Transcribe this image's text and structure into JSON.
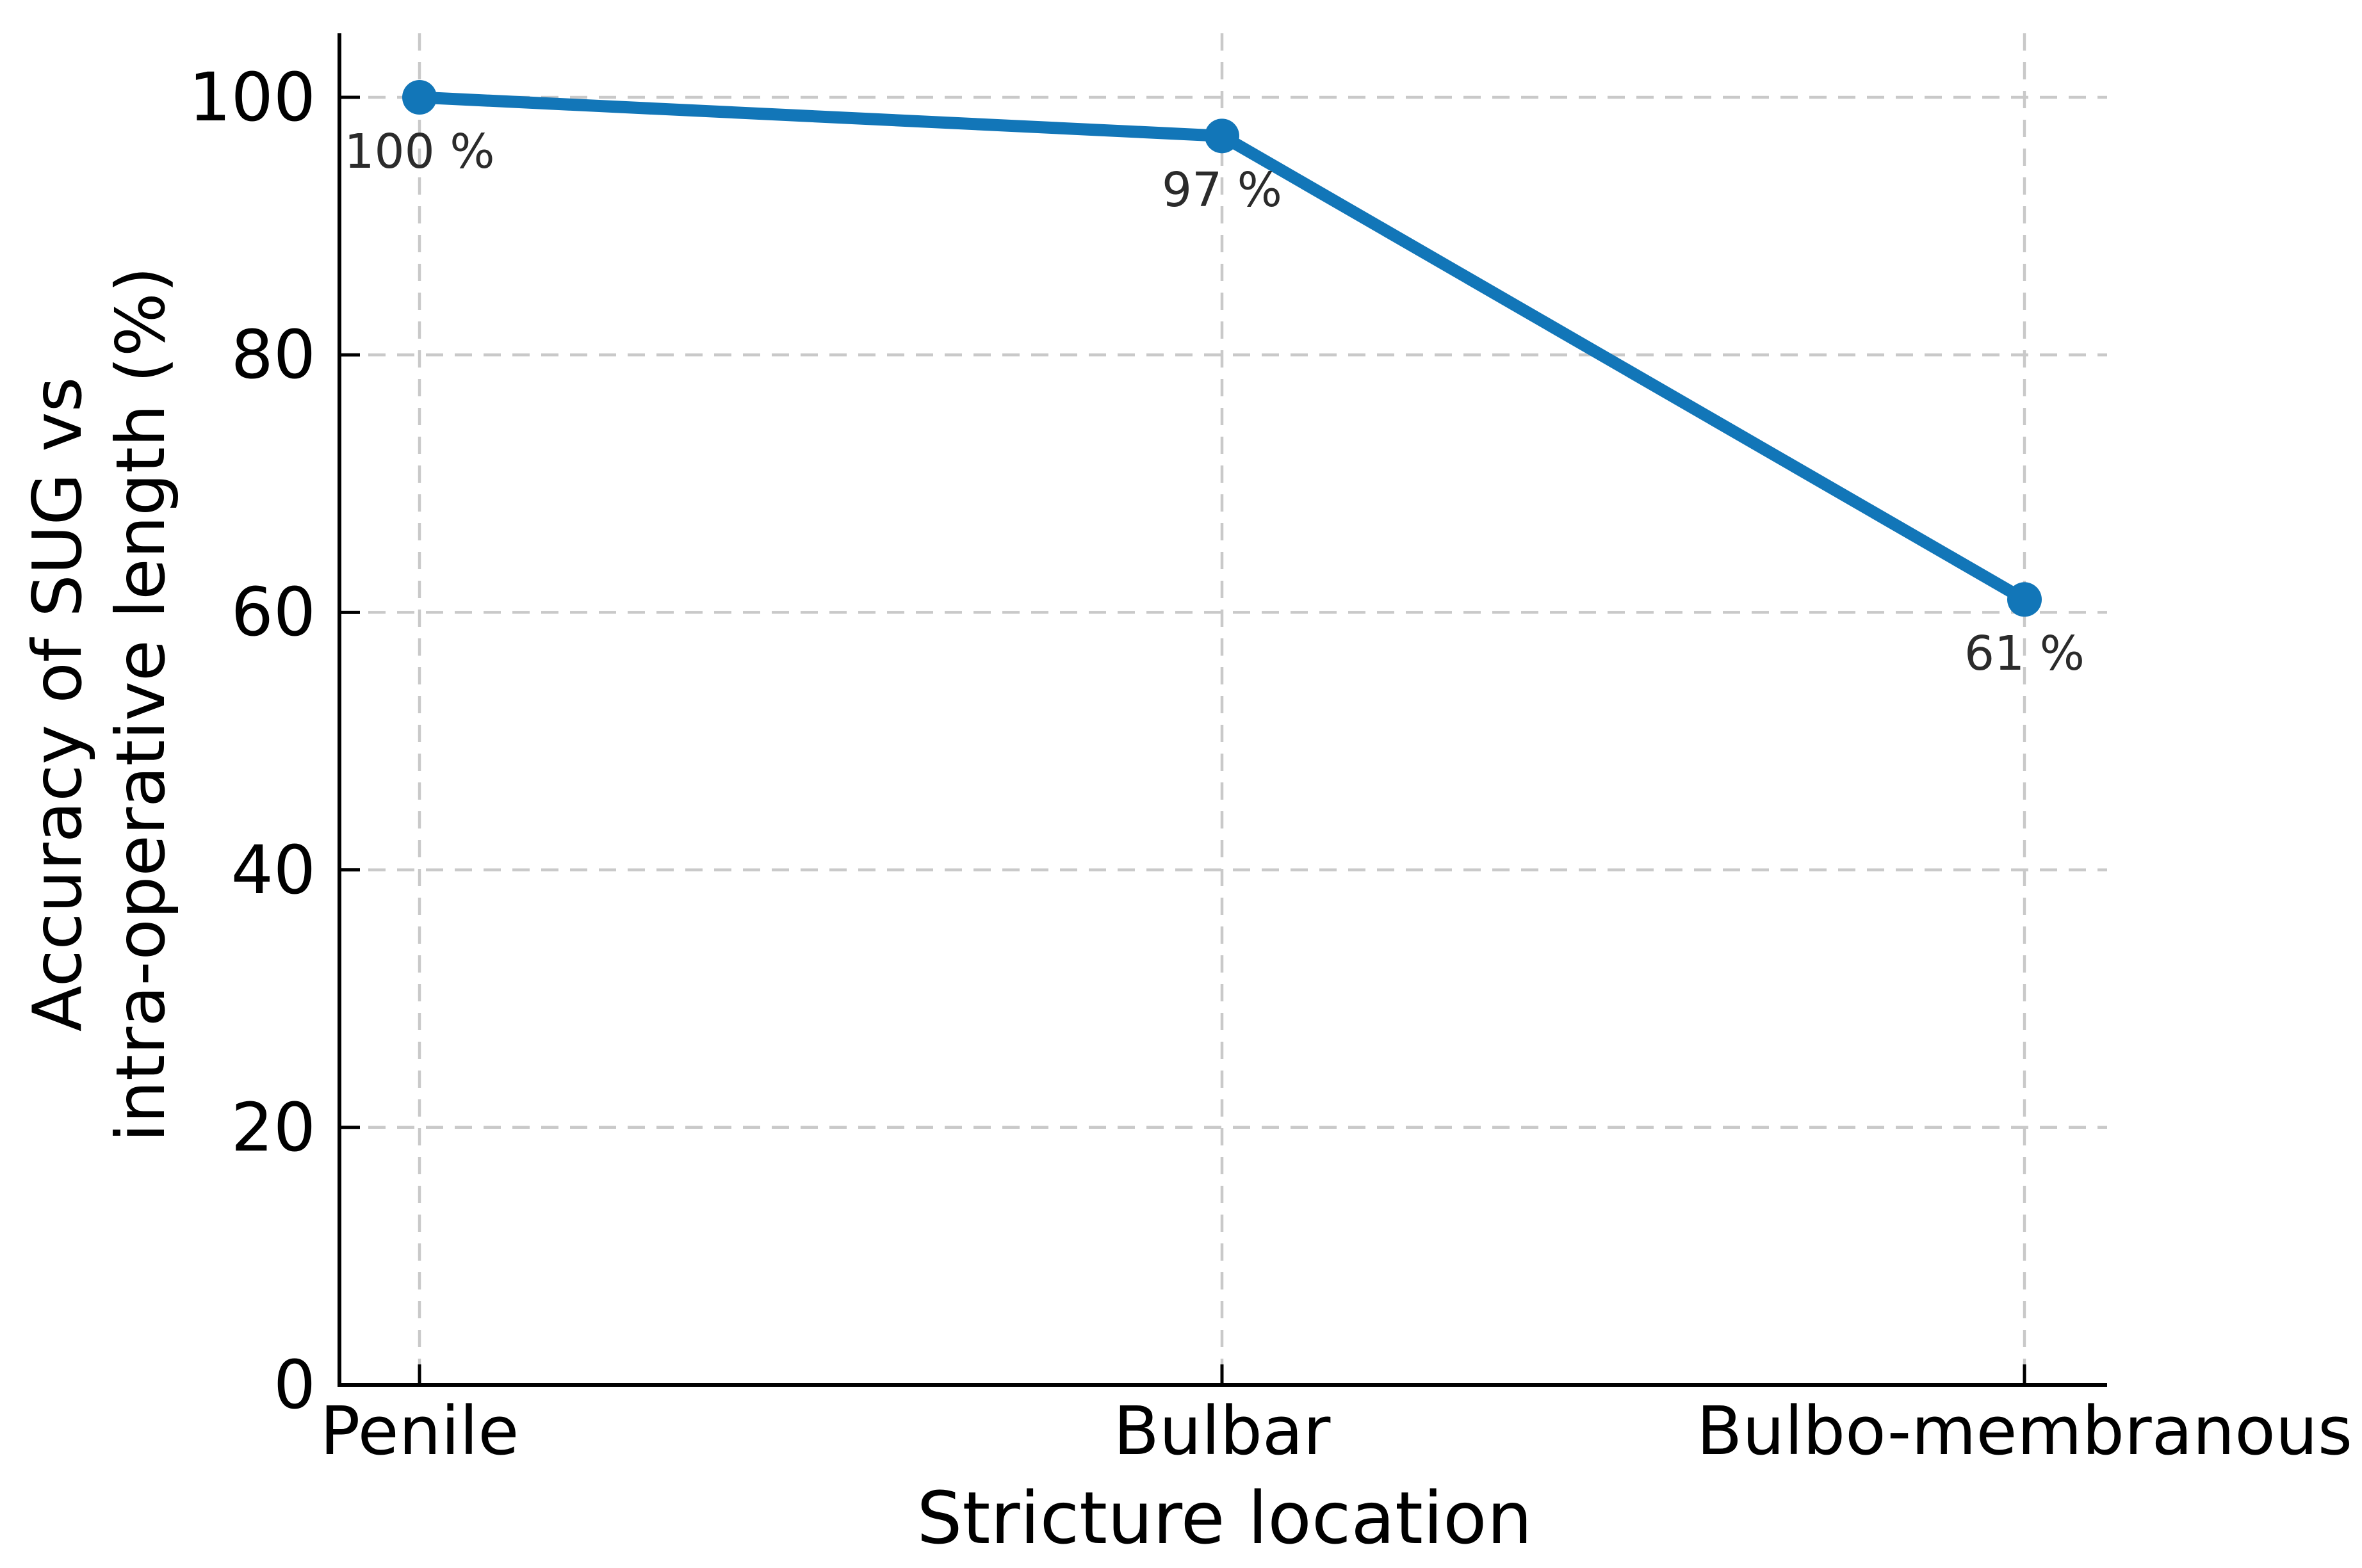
{
  "chart_data": {
    "type": "line",
    "title": "",
    "categories": [
      "Penile",
      "Bulbar",
      "Bulbo-membranous"
    ],
    "series": [
      {
        "name": "Accuracy of SUG vs intra-operative length",
        "values": [
          100,
          97,
          61
        ]
      }
    ],
    "point_labels": [
      "100 %",
      "97 %",
      "61 %"
    ],
    "xlabel": "Stricture location",
    "ylabel": "Accuracy of SUG vs\nintra-operative length (%)",
    "ylabel_lines": [
      "Accuracy of SUG vs",
      "intra-operative length (%)"
    ],
    "yticks": [
      0,
      20,
      40,
      60,
      80,
      100
    ],
    "ytick_labels": [
      "0",
      "20",
      "40",
      "60",
      "80",
      "100"
    ],
    "ylim": [
      0,
      105
    ],
    "grid": "dashed, horizontal and vertical",
    "legend_position": "none",
    "colors": {
      "line": "#1276b8",
      "marker": "#1276b8",
      "grid": "#c9c9c9",
      "axis": "#000000",
      "tick_label": "#000000",
      "annotation": "#2b2b2b"
    }
  }
}
